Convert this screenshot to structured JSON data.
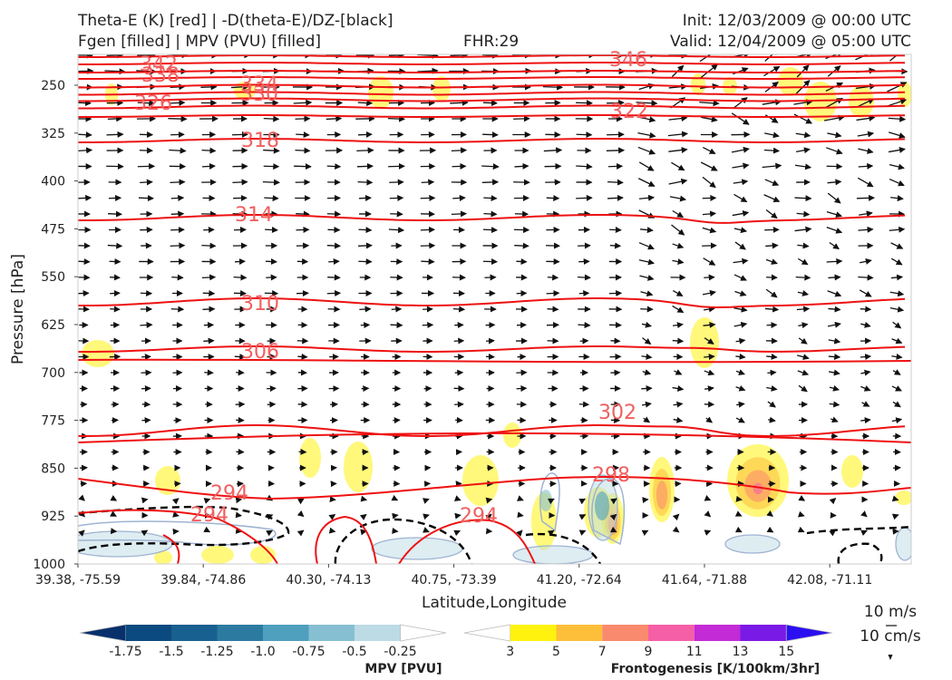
{
  "header": {
    "title_left_1": "Theta-E (K) [red] | -D(theta-E)/DZ-[black]",
    "title_left_2": "Fgen [filled] | MPV (PVU) [filled]",
    "fhr": "FHR:29",
    "init": "Init: 12/03/2009 @ 00:00 UTC",
    "valid": "Valid: 12/04/2009 @ 05:00 UTC"
  },
  "chart_data": {
    "type": "cross-section",
    "xlabel": "Latitude,Longitude",
    "ylabel": "Pressure [hPa]",
    "ylim": [
      1000,
      200
    ],
    "x_ticks": [
      "39.38, -75.59",
      "39.84, -74.86",
      "40.30, -74.13",
      "40.75, -73.39",
      "41.20, -72.64",
      "41.64, -71.88",
      "42.08, -71.11"
    ],
    "y_ticks": [
      250,
      325,
      400,
      475,
      550,
      625,
      700,
      775,
      850,
      925,
      1000
    ],
    "theta_e_contours": [
      {
        "label": "342",
        "p": 208
      },
      {
        "label": "338",
        "p": 218
      },
      {
        "label": "334",
        "p": 234
      },
      {
        "label": "330",
        "p": 246
      },
      {
        "label": "326",
        "p": 264
      },
      {
        "label": "346",
        "p": 207
      },
      {
        "label": "322",
        "p": 286
      },
      {
        "label": "318",
        "p": 335
      },
      {
        "label": "314",
        "p": 450
      },
      {
        "label": "310",
        "p": 593
      },
      {
        "label": "306",
        "p": 670
      },
      {
        "label": "302",
        "p": 790
      },
      {
        "label": "298",
        "p": 862
      },
      {
        "label": "294",
        "p": 888
      },
      {
        "label": "294",
        "p": 920
      },
      {
        "label": "294",
        "p": 915
      }
    ],
    "mpv_colorbar": {
      "label": "MPV [PVU]",
      "levels": [
        "-1.75",
        "-1.5",
        "-1.25",
        "-1.0",
        "-0.75",
        "-0.5",
        "-0.25"
      ],
      "colors": [
        "#08306b",
        "#0b4a80",
        "#18608f",
        "#2d7aa0",
        "#4f9fbe",
        "#86bfd2",
        "#bcdbe5",
        "#ffffff"
      ]
    },
    "fgen_colorbar": {
      "label": "Frontogenesis [K/100km/3hr]",
      "levels": [
        "3",
        "5",
        "7",
        "9",
        "11",
        "13",
        "15"
      ],
      "colors": [
        "#ffffff",
        "#fff20e",
        "#fdbe3a",
        "#f98a6d",
        "#f55fa6",
        "#c22bd6",
        "#7a1ae6",
        "#2a10f0"
      ]
    },
    "vector_key": {
      "horizontal": "10 m/s",
      "vertical": "10 cm/s"
    }
  }
}
